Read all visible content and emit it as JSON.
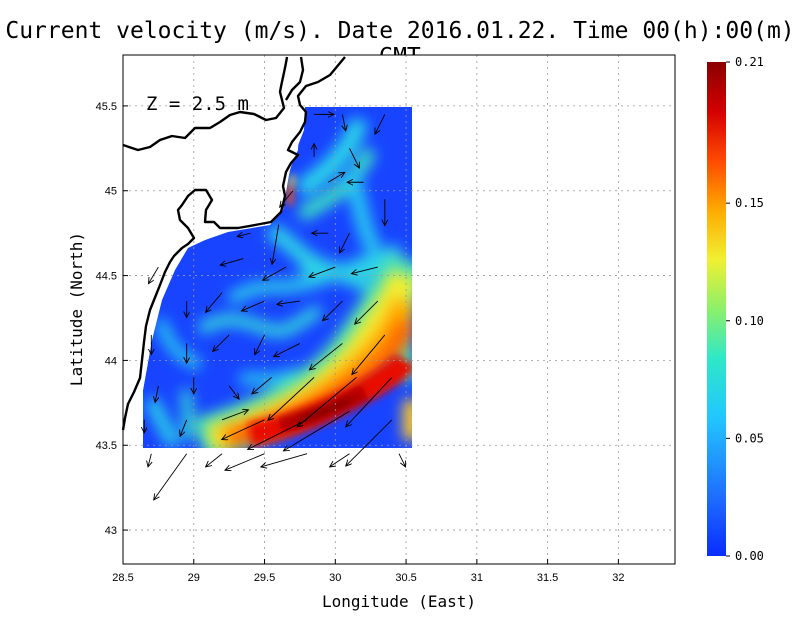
{
  "title": "Current velocity (m/s). Date 2016.01.22. Time 00(h):00(m) GMT",
  "depth_label": "Z = 2.5 m",
  "x_axis": {
    "label": "Longitude (East)",
    "range": [
      28.5,
      32.4
    ],
    "ticks": [
      28.5,
      29,
      29.5,
      30,
      30.5,
      31,
      31.5,
      32
    ],
    "tick_labels": [
      "28.5",
      "29",
      "29.5",
      "30",
      "30.5",
      "31",
      "31.5",
      "32"
    ]
  },
  "y_axis": {
    "label": "Latitude (North)",
    "range": [
      42.8,
      45.8
    ],
    "ticks": [
      43,
      43.5,
      44,
      44.5,
      45,
      45.5
    ],
    "tick_labels": [
      "43",
      "43.5",
      "44",
      "44.5",
      "45",
      "45.5"
    ]
  },
  "colorbar": {
    "range": [
      0.0,
      0.21
    ],
    "ticks": [
      0.0,
      0.05,
      0.1,
      0.15,
      0.21
    ],
    "tick_labels": [
      "0.00",
      "0.05",
      "0.10",
      "0.15",
      "0.21"
    ],
    "colors": [
      "#0a2cff",
      "#1e6eff",
      "#22c6ff",
      "#2ee8c8",
      "#8cf06a",
      "#f0f032",
      "#ffaa00",
      "#ff4a00",
      "#d40000",
      "#8a0000"
    ]
  },
  "colors": {
    "land_fill": "#ffffff",
    "coastline": "#000000",
    "grid": "#9a9a9a",
    "arrow": "#000000"
  },
  "chart_data": {
    "type": "heatmap",
    "title": "Current velocity (m/s). Date 2016.01.22. Time 00(h):00(m) GMT",
    "xlabel": "Longitude (East)",
    "ylabel": "Latitude (North)",
    "xlim": [
      28.5,
      32.4
    ],
    "ylim": [
      42.8,
      45.8
    ],
    "grid": true,
    "depth": "Z = 2.5 m",
    "speed_features": [
      {
        "lon": 29.9,
        "lat": 43.7,
        "speed": 0.21
      },
      {
        "lon": 30.2,
        "lat": 43.8,
        "speed": 0.2
      },
      {
        "lon": 29.4,
        "lat": 43.58,
        "speed": 0.16
      },
      {
        "lon": 30.3,
        "lat": 44.15,
        "speed": 0.14
      },
      {
        "lon": 29.67,
        "lat": 44.97,
        "speed": 0.15
      },
      {
        "lon": 29.95,
        "lat": 45.0,
        "speed": 0.09
      },
      {
        "lon": 30.1,
        "lat": 45.3,
        "speed": 0.08
      },
      {
        "lon": 29.5,
        "lat": 44.3,
        "speed": 0.07
      },
      {
        "lon": 29.0,
        "lat": 44.1,
        "speed": 0.06
      },
      {
        "lon": 28.85,
        "lat": 43.75,
        "speed": 0.07
      },
      {
        "lon": 30.2,
        "lat": 44.6,
        "speed": 0.08
      },
      {
        "lon": 29.4,
        "lat": 44.7,
        "speed": 0.06
      },
      {
        "lon": 29.2,
        "lat": 44.0,
        "speed": 0.02
      }
    ],
    "vectors": [
      {
        "lon": 29.85,
        "lat": 45.45,
        "u": 0.06,
        "v": 0.0
      },
      {
        "lon": 30.05,
        "lat": 45.45,
        "u": 0.01,
        "v": -0.05
      },
      {
        "lon": 30.35,
        "lat": 45.45,
        "u": -0.03,
        "v": -0.06
      },
      {
        "lon": 29.85,
        "lat": 45.2,
        "u": 0.0,
        "v": 0.04
      },
      {
        "lon": 30.1,
        "lat": 45.25,
        "u": 0.03,
        "v": -0.06
      },
      {
        "lon": 29.95,
        "lat": 45.05,
        "u": 0.05,
        "v": 0.03
      },
      {
        "lon": 29.7,
        "lat": 45.0,
        "u": -0.04,
        "v": -0.05
      },
      {
        "lon": 30.2,
        "lat": 45.05,
        "u": -0.05,
        "v": 0.0
      },
      {
        "lon": 30.35,
        "lat": 44.95,
        "u": 0.0,
        "v": -0.08
      },
      {
        "lon": 29.6,
        "lat": 44.8,
        "u": -0.02,
        "v": -0.12
      },
      {
        "lon": 29.95,
        "lat": 44.75,
        "u": -0.05,
        "v": 0.0
      },
      {
        "lon": 30.1,
        "lat": 44.75,
        "u": -0.03,
        "v": -0.06
      },
      {
        "lon": 29.4,
        "lat": 44.75,
        "u": -0.04,
        "v": -0.01
      },
      {
        "lon": 29.35,
        "lat": 44.6,
        "u": -0.07,
        "v": -0.02
      },
      {
        "lon": 29.65,
        "lat": 44.55,
        "u": -0.07,
        "v": -0.04
      },
      {
        "lon": 30.0,
        "lat": 44.55,
        "u": -0.08,
        "v": -0.03
      },
      {
        "lon": 30.3,
        "lat": 44.55,
        "u": -0.08,
        "v": -0.02
      },
      {
        "lon": 28.75,
        "lat": 44.55,
        "u": -0.03,
        "v": -0.05
      },
      {
        "lon": 28.95,
        "lat": 44.35,
        "u": 0.0,
        "v": -0.05
      },
      {
        "lon": 29.2,
        "lat": 44.4,
        "u": -0.05,
        "v": -0.06
      },
      {
        "lon": 29.5,
        "lat": 44.35,
        "u": -0.07,
        "v": -0.03
      },
      {
        "lon": 29.75,
        "lat": 44.35,
        "u": -0.07,
        "v": -0.01
      },
      {
        "lon": 30.05,
        "lat": 44.35,
        "u": -0.06,
        "v": -0.06
      },
      {
        "lon": 30.3,
        "lat": 44.35,
        "u": -0.07,
        "v": -0.07
      },
      {
        "lon": 28.7,
        "lat": 44.15,
        "u": 0.0,
        "v": -0.06
      },
      {
        "lon": 28.95,
        "lat": 44.1,
        "u": 0.0,
        "v": -0.06
      },
      {
        "lon": 29.25,
        "lat": 44.15,
        "u": -0.05,
        "v": -0.05
      },
      {
        "lon": 29.5,
        "lat": 44.15,
        "u": -0.03,
        "v": -0.06
      },
      {
        "lon": 29.75,
        "lat": 44.1,
        "u": -0.08,
        "v": -0.04
      },
      {
        "lon": 30.05,
        "lat": 44.1,
        "u": -0.1,
        "v": -0.08
      },
      {
        "lon": 30.35,
        "lat": 44.15,
        "u": -0.1,
        "v": -0.12
      },
      {
        "lon": 28.75,
        "lat": 43.85,
        "u": -0.01,
        "v": -0.05
      },
      {
        "lon": 29.0,
        "lat": 43.9,
        "u": 0.0,
        "v": -0.05
      },
      {
        "lon": 29.25,
        "lat": 43.85,
        "u": 0.03,
        "v": -0.04
      },
      {
        "lon": 29.55,
        "lat": 43.9,
        "u": -0.06,
        "v": -0.05
      },
      {
        "lon": 29.85,
        "lat": 43.9,
        "u": -0.14,
        "v": -0.13
      },
      {
        "lon": 30.15,
        "lat": 43.9,
        "u": -0.18,
        "v": -0.15
      },
      {
        "lon": 30.4,
        "lat": 43.9,
        "u": -0.14,
        "v": -0.15
      },
      {
        "lon": 28.65,
        "lat": 43.65,
        "u": 0.0,
        "v": -0.04
      },
      {
        "lon": 28.95,
        "lat": 43.65,
        "u": -0.02,
        "v": -0.05
      },
      {
        "lon": 29.2,
        "lat": 43.65,
        "u": 0.08,
        "v": 0.03
      },
      {
        "lon": 29.5,
        "lat": 43.65,
        "u": -0.13,
        "v": -0.06
      },
      {
        "lon": 29.8,
        "lat": 43.65,
        "u": -0.18,
        "v": -0.09
      },
      {
        "lon": 30.1,
        "lat": 43.7,
        "u": -0.2,
        "v": -0.12
      },
      {
        "lon": 30.4,
        "lat": 43.65,
        "u": -0.14,
        "v": -0.14
      },
      {
        "lon": 28.7,
        "lat": 43.45,
        "u": -0.01,
        "v": -0.04
      },
      {
        "lon": 28.95,
        "lat": 43.45,
        "u": -0.1,
        "v": -0.14
      },
      {
        "lon": 29.2,
        "lat": 43.45,
        "u": -0.05,
        "v": -0.04
      },
      {
        "lon": 29.5,
        "lat": 43.45,
        "u": -0.12,
        "v": -0.05
      },
      {
        "lon": 29.8,
        "lat": 43.45,
        "u": -0.14,
        "v": -0.04
      },
      {
        "lon": 30.1,
        "lat": 43.45,
        "u": -0.06,
        "v": -0.04
      },
      {
        "lon": 30.45,
        "lat": 43.45,
        "u": 0.02,
        "v": -0.04
      }
    ]
  }
}
